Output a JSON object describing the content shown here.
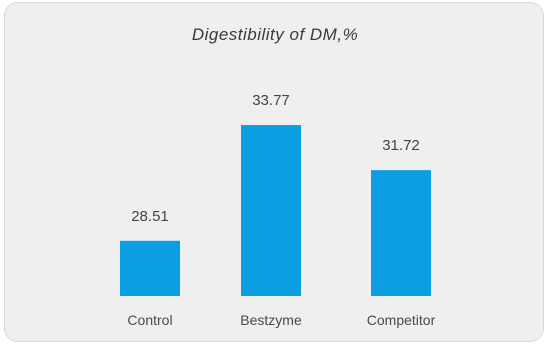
{
  "chart_data": {
    "type": "bar",
    "title": "Digestibility of DM,%",
    "categories": [
      "Control",
      "Bestzyme",
      "Competitor"
    ],
    "values": [
      28.51,
      33.77,
      31.72
    ],
    "value_labels": [
      "28.51",
      "33.77",
      "31.72"
    ],
    "xlabel": "",
    "ylabel": "",
    "ylim": [
      26,
      35
    ],
    "grid": false,
    "legend": "none",
    "colors": {
      "bar": "#0b9ee2",
      "background": "#efefef"
    }
  }
}
